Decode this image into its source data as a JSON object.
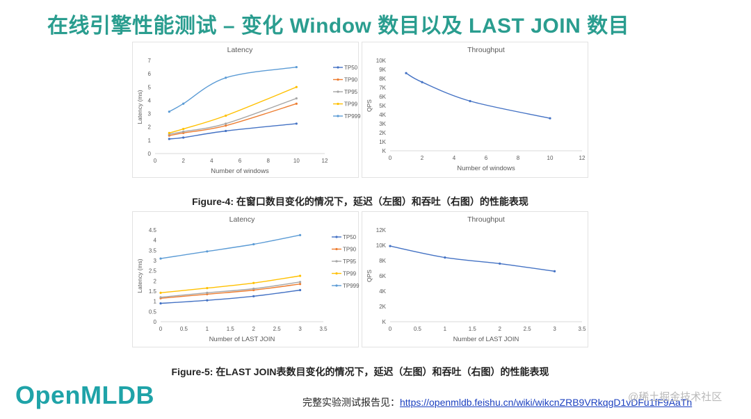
{
  "slide": {
    "title": "在线引擎性能测试 – 变化 Window 数目以及 LAST JOIN 数目"
  },
  "captions": {
    "figure4": "Figure-4: 在窗口数目变化的情况下，延迟（左图）和吞吐（右图）的性能表现",
    "figure5": "Figure-5: 在LAST JOIN表数目变化的情况下，延迟（左图）和吞吐（右图）的性能表现"
  },
  "footer": {
    "logo": "OpenMLDB",
    "note_prefix": "完整实验测试报告见：",
    "link_text": "https://openmldb.feishu.cn/wiki/wikcnZRB9VRkqgD1vDFu1fF9AaTh",
    "watermark": "@稀土掘金技术社区"
  },
  "colors": {
    "title": "#2a9d8f",
    "logo": "#1fa3a8",
    "TP50": "#4472c4",
    "TP90": "#ed7d31",
    "TP95": "#a5a5a5",
    "TP99": "#ffc000",
    "TP999": "#5b9bd5"
  },
  "chart_data": [
    {
      "id": "fig4-latency",
      "type": "line",
      "title": "Latency",
      "xlabel": "Number of windows",
      "ylabel": "Latency (ms)",
      "xlim": [
        0,
        12
      ],
      "ylim": [
        0,
        7
      ],
      "xticks": [
        "0",
        "2",
        "4",
        "6",
        "8",
        "10",
        "12"
      ],
      "yticks": [
        "0",
        "1",
        "2",
        "3",
        "4",
        "5",
        "6",
        "7"
      ],
      "x": [
        1,
        2,
        5,
        10
      ],
      "legend": "right",
      "series": [
        {
          "name": "TP50",
          "values": [
            1.1,
            1.2,
            1.7,
            2.25
          ]
        },
        {
          "name": "TP90",
          "values": [
            1.35,
            1.55,
            2.1,
            3.75
          ]
        },
        {
          "name": "TP95",
          "values": [
            1.45,
            1.65,
            2.25,
            4.15
          ]
        },
        {
          "name": "TP99",
          "values": [
            1.55,
            1.85,
            2.85,
            5.0
          ]
        },
        {
          "name": "TP999",
          "values": [
            3.15,
            3.75,
            5.7,
            6.5
          ]
        }
      ]
    },
    {
      "id": "fig4-throughput",
      "type": "line",
      "title": "Throughput",
      "xlabel": "Number of windows",
      "ylabel": "QPS",
      "xlim": [
        0,
        12
      ],
      "ylim": [
        0,
        10000
      ],
      "xticks": [
        "0",
        "2",
        "4",
        "6",
        "8",
        "10",
        "12"
      ],
      "yticks": [
        "K",
        "1K",
        "2K",
        "3K",
        "4K",
        "5K",
        "6K",
        "7K",
        "8K",
        "9K",
        "10K"
      ],
      "x": [
        1,
        2,
        5,
        10
      ],
      "series": [
        {
          "name": "QPS",
          "values": [
            8600,
            7600,
            5500,
            3600
          ]
        }
      ]
    },
    {
      "id": "fig5-latency",
      "type": "line",
      "title": "Latency",
      "xlabel": "Number of LAST JOIN",
      "ylabel": "Latency (ms)",
      "xlim": [
        0,
        3.5
      ],
      "ylim": [
        0,
        4.5
      ],
      "xticks": [
        "0",
        "0.5",
        "1",
        "1.5",
        "2",
        "2.5",
        "3",
        "3.5"
      ],
      "yticks": [
        "0",
        "0.5",
        "1",
        "1.5",
        "2",
        "2.5",
        "3",
        "3.5",
        "4",
        "4.5"
      ],
      "x": [
        0,
        1,
        2,
        3
      ],
      "legend": "right",
      "series": [
        {
          "name": "TP50",
          "values": [
            0.9,
            1.05,
            1.25,
            1.55
          ]
        },
        {
          "name": "TP90",
          "values": [
            1.15,
            1.35,
            1.55,
            1.85
          ]
        },
        {
          "name": "TP95",
          "values": [
            1.2,
            1.42,
            1.62,
            1.95
          ]
        },
        {
          "name": "TP99",
          "values": [
            1.42,
            1.65,
            1.9,
            2.25
          ]
        },
        {
          "name": "TP999",
          "values": [
            3.1,
            3.45,
            3.8,
            4.25
          ]
        }
      ]
    },
    {
      "id": "fig5-throughput",
      "type": "line",
      "title": "Throughput",
      "xlabel": "Number of LAST JOIN",
      "ylabel": "QPS",
      "xlim": [
        0,
        3.5
      ],
      "ylim": [
        0,
        12000
      ],
      "xticks": [
        "0",
        "0.5",
        "1",
        "1.5",
        "2",
        "2.5",
        "3",
        "3.5"
      ],
      "yticks": [
        "K",
        "2K",
        "4K",
        "6K",
        "8K",
        "10K",
        "12K"
      ],
      "x": [
        0,
        1,
        2,
        3
      ],
      "series": [
        {
          "name": "QPS",
          "values": [
            9900,
            8400,
            7600,
            6600
          ]
        }
      ]
    }
  ]
}
